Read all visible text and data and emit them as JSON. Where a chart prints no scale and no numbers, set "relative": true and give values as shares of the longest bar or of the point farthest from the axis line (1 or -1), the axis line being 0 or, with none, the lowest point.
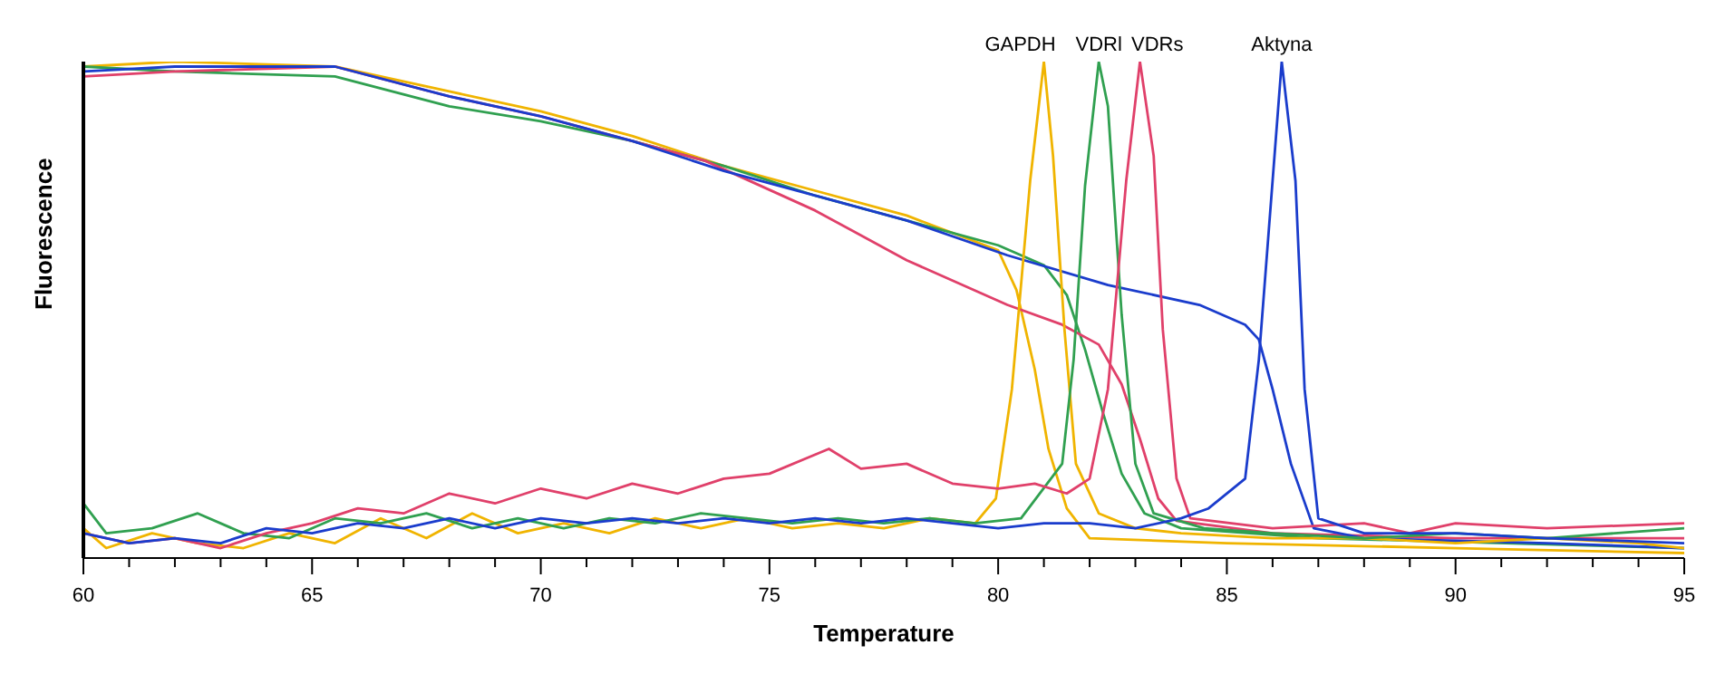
{
  "chart_data": {
    "type": "line",
    "xlabel": "Temperature",
    "ylabel": "Fluorescence",
    "relative": true,
    "xlim": [
      60,
      95
    ],
    "xticks": [
      60,
      {
        "value": 61,
        "label": null
      },
      {
        "value": 62,
        "label": null
      },
      {
        "value": 63,
        "label": null
      },
      {
        "value": 64,
        "label": null
      },
      65,
      {
        "value": 66,
        "label": null
      },
      {
        "value": 67,
        "label": null
      },
      {
        "value": 68,
        "label": null
      },
      {
        "value": 69,
        "label": null
      },
      70,
      {
        "value": 71,
        "label": null
      },
      {
        "value": 72,
        "label": null
      },
      {
        "value": 73,
        "label": null
      },
      {
        "value": 74,
        "label": null
      },
      75,
      {
        "value": 76,
        "label": null
      },
      {
        "value": 77,
        "label": null
      },
      {
        "value": 78,
        "label": null
      },
      {
        "value": 79,
        "label": null
      },
      80,
      {
        "value": 81,
        "label": null
      },
      {
        "value": 82,
        "label": null
      },
      {
        "value": 83,
        "label": null
      },
      {
        "value": 84,
        "label": null
      },
      85,
      {
        "value": 86,
        "label": null
      },
      {
        "value": 87,
        "label": null
      },
      {
        "value": 88,
        "label": null
      },
      {
        "value": 89,
        "label": null
      },
      90,
      {
        "value": 91,
        "label": null
      },
      {
        "value": 92,
        "label": null
      },
      {
        "value": 93,
        "label": null
      },
      {
        "value": 94,
        "label": null
      },
      95
    ],
    "grid": false,
    "legend": false,
    "marker": "none",
    "line_style": "solid",
    "series": [
      {
        "color": "#f0b400",
        "x": [
          60,
          62,
          65.5,
          68,
          70,
          72,
          74,
          76,
          78,
          80,
          80.4,
          80.8,
          81.1,
          81.5,
          82,
          85,
          90,
          95
        ],
        "values": [
          0.99,
          1.0,
          0.99,
          0.94,
          0.9,
          0.85,
          0.79,
          0.74,
          0.69,
          0.62,
          0.54,
          0.38,
          0.22,
          0.1,
          0.04,
          0.03,
          0.02,
          0.01
        ]
      },
      {
        "color": "#30a050",
        "x": [
          60,
          62,
          65.5,
          68,
          70,
          72,
          74,
          76,
          78,
          80,
          81,
          81.5,
          81.9,
          82.3,
          82.7,
          83.2,
          84,
          87,
          95
        ],
        "values": [
          0.99,
          0.98,
          0.97,
          0.91,
          0.88,
          0.84,
          0.79,
          0.73,
          0.68,
          0.63,
          0.59,
          0.53,
          0.42,
          0.29,
          0.17,
          0.09,
          0.06,
          0.04,
          0.02
        ]
      },
      {
        "color": "#e0406a",
        "x": [
          60,
          62,
          65.5,
          68,
          70,
          72,
          73.6,
          76,
          78,
          80.2,
          81.4,
          82.2,
          82.7,
          83.1,
          83.5,
          83.9,
          86,
          90,
          95
        ],
        "values": [
          0.97,
          0.98,
          0.99,
          0.93,
          0.89,
          0.84,
          0.8,
          0.7,
          0.6,
          0.51,
          0.47,
          0.43,
          0.35,
          0.24,
          0.12,
          0.075,
          0.05,
          0.04,
          0.04
        ]
      },
      {
        "color": "#1a3ccc",
        "x": [
          60,
          62,
          65.5,
          68,
          70,
          72,
          74,
          76,
          78,
          80.2,
          82.4,
          84.4,
          85.4,
          85.7,
          86,
          86.4,
          86.9,
          88,
          92,
          95
        ],
        "values": [
          0.98,
          0.99,
          0.99,
          0.93,
          0.89,
          0.84,
          0.78,
          0.73,
          0.68,
          0.61,
          0.55,
          0.51,
          0.47,
          0.44,
          0.34,
          0.19,
          0.06,
          0.04,
          0.03,
          0.02
        ]
      },
      {
        "name": "GAPDH",
        "color": "#f0b400",
        "x": [
          60,
          60.5,
          61.5,
          62.5,
          63.5,
          64.5,
          65.5,
          66.5,
          67.5,
          68.5,
          69.5,
          70.5,
          71.5,
          72.5,
          73.5,
          74.5,
          75.5,
          76.5,
          77.5,
          78.5,
          79.5,
          79.95,
          80.3,
          80.7,
          81.0,
          81.2,
          81.45,
          81.7,
          82.2,
          83,
          84,
          86,
          88,
          90,
          92,
          94,
          95
        ],
        "values": [
          0.06,
          0.02,
          0.05,
          0.03,
          0.02,
          0.05,
          0.03,
          0.08,
          0.04,
          0.09,
          0.05,
          0.07,
          0.05,
          0.08,
          0.06,
          0.08,
          0.06,
          0.07,
          0.06,
          0.08,
          0.07,
          0.12,
          0.34,
          0.76,
          1.0,
          0.81,
          0.46,
          0.19,
          0.09,
          0.06,
          0.05,
          0.04,
          0.04,
          0.03,
          0.04,
          0.03,
          0.02
        ]
      },
      {
        "name": "VDRl",
        "color": "#30a050",
        "x": [
          60,
          60.5,
          61.5,
          62.5,
          63.5,
          64.5,
          65.5,
          66.5,
          67.5,
          68.5,
          69.5,
          70.5,
          71.5,
          72.5,
          73.5,
          74.5,
          75.5,
          76.5,
          77.5,
          78.5,
          79.5,
          80.5,
          81.4,
          81.65,
          81.9,
          82.2,
          82.4,
          82.7,
          83.0,
          83.4,
          84.5,
          86,
          88,
          90,
          92,
          95
        ],
        "values": [
          0.11,
          0.05,
          0.06,
          0.09,
          0.05,
          0.04,
          0.08,
          0.07,
          0.09,
          0.06,
          0.08,
          0.06,
          0.08,
          0.07,
          0.09,
          0.08,
          0.07,
          0.08,
          0.07,
          0.08,
          0.07,
          0.08,
          0.19,
          0.4,
          0.75,
          1.0,
          0.91,
          0.49,
          0.19,
          0.09,
          0.06,
          0.05,
          0.04,
          0.05,
          0.04,
          0.06
        ]
      },
      {
        "name": "VDRs",
        "color": "#e0406a",
        "x": [
          60,
          61,
          62,
          63,
          64,
          65,
          66,
          67,
          68,
          69,
          70,
          71,
          72,
          73,
          74,
          75,
          76.3,
          77,
          78,
          79,
          80,
          80.8,
          81.5,
          82,
          82.4,
          82.8,
          83.1,
          83.4,
          83.6,
          83.9,
          84.2,
          86,
          88,
          89,
          90,
          92,
          95
        ],
        "values": [
          0.05,
          0.03,
          0.04,
          0.02,
          0.05,
          0.07,
          0.1,
          0.09,
          0.13,
          0.11,
          0.14,
          0.12,
          0.15,
          0.13,
          0.16,
          0.17,
          0.22,
          0.18,
          0.19,
          0.15,
          0.14,
          0.15,
          0.13,
          0.16,
          0.34,
          0.76,
          1.0,
          0.81,
          0.46,
          0.16,
          0.08,
          0.06,
          0.07,
          0.05,
          0.07,
          0.06,
          0.07
        ]
      },
      {
        "name": "Aktyna",
        "color": "#1a3ccc",
        "x": [
          60,
          61,
          62,
          63,
          64,
          65,
          66,
          67,
          68,
          69,
          70,
          71,
          72,
          73,
          74,
          75,
          76,
          77,
          78,
          79,
          80,
          81,
          82,
          83,
          84,
          84.6,
          85.4,
          85.7,
          86.0,
          86.2,
          86.5,
          86.7,
          87.0,
          88,
          90,
          92,
          95
        ],
        "values": [
          0.05,
          0.03,
          0.04,
          0.03,
          0.06,
          0.05,
          0.07,
          0.06,
          0.08,
          0.06,
          0.08,
          0.07,
          0.08,
          0.07,
          0.08,
          0.07,
          0.08,
          0.07,
          0.08,
          0.07,
          0.06,
          0.07,
          0.07,
          0.06,
          0.08,
          0.1,
          0.16,
          0.4,
          0.76,
          1.0,
          0.76,
          0.34,
          0.08,
          0.05,
          0.05,
          0.04,
          0.03
        ]
      }
    ]
  }
}
